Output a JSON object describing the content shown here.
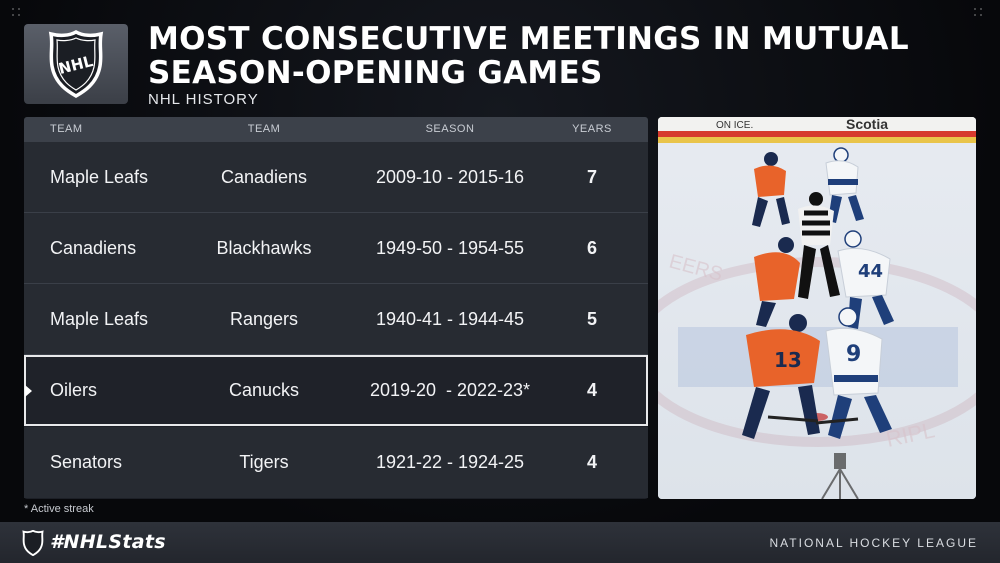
{
  "header": {
    "logo_text": "NHL",
    "title_line1": "MOST CONSECUTIVE MEETINGS IN MUTUAL",
    "title_line2": "SEASON-OPENING GAMES",
    "subtitle": "NHL HISTORY"
  },
  "table": {
    "columns": [
      "TEAM",
      "TEAM",
      "SEASON",
      "YEARS"
    ],
    "rows": [
      {
        "team1": "Maple Leafs",
        "team2": "Canadiens",
        "season": "2009-10 - 2015-16",
        "years": "7",
        "highlighted": false
      },
      {
        "team1": "Canadiens",
        "team2": "Blackhawks",
        "season": "1949-50 - 1954-55",
        "years": "6",
        "highlighted": false
      },
      {
        "team1": "Maple Leafs",
        "team2": "Rangers",
        "season": "1940-41 - 1944-45",
        "years": "5",
        "highlighted": false
      },
      {
        "team1": "Oilers",
        "team2": "Canucks",
        "season": "2019-20  - 2022-23*",
        "years": "4",
        "highlighted": true
      },
      {
        "team1": "Senators",
        "team2": "Tigers",
        "season": "1921-22 - 1924-25",
        "years": "4",
        "highlighted": false
      }
    ]
  },
  "photo": {
    "numbers": [
      "44",
      "9",
      "13"
    ],
    "board_text": [
      "ON ICE.",
      "Scotia"
    ]
  },
  "footnote": "* Active streak",
  "footer": {
    "tag": "#NHLStats",
    "league": "NATIONAL HOCKEY LEAGUE"
  },
  "colors": {
    "oilers_orange": "#e8632a",
    "oilers_navy": "#1a2a4f",
    "canucks_white": "#f4f6f8",
    "canucks_blue": "#1f3f7a",
    "highlight_border": "#e8e9eb"
  }
}
